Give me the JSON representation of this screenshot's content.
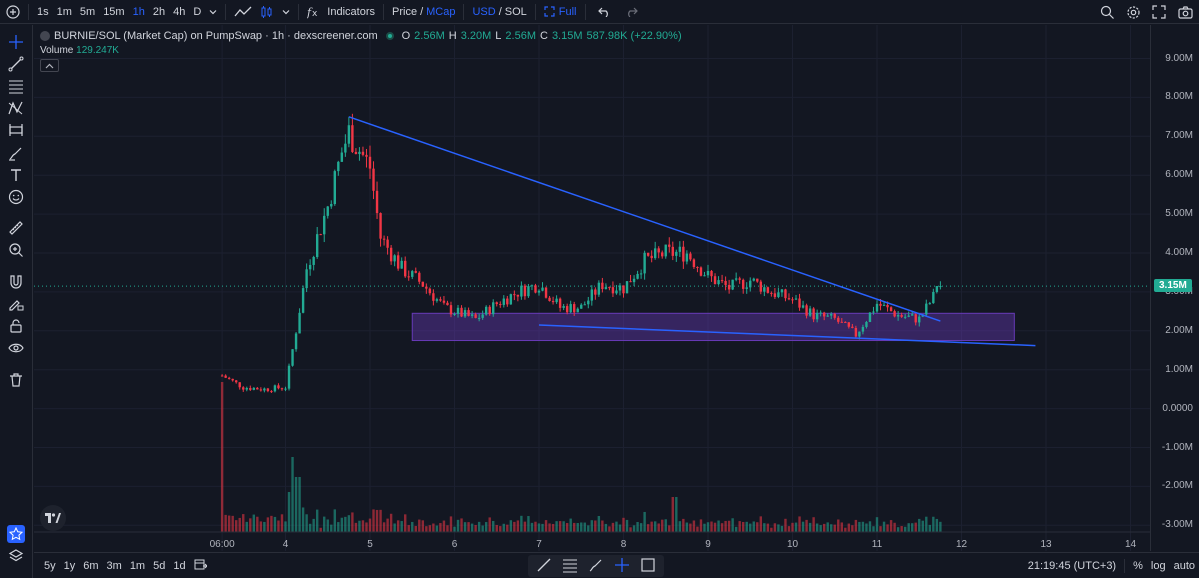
{
  "toolbar": {
    "intervals": [
      "1s",
      "1m",
      "5m",
      "15m",
      "1h",
      "2h",
      "4h",
      "D"
    ],
    "active_interval": "1h",
    "indicators_label": "Indicators",
    "price_label": "Price",
    "mcap_label": "MCap",
    "slash": "/",
    "usd_label": "USD",
    "sol_label": "SOL",
    "full_label": "Full"
  },
  "legend": {
    "symbol": "BURNIE/SOL (Market Cap) on PumpSwap · 1h · dexscreener.com",
    "open_label": "O",
    "open": "2.56M",
    "high_label": "H",
    "high": "3.20M",
    "low_label": "L",
    "low": "2.56M",
    "close_label": "C",
    "close": "3.15M",
    "change": "587.98K (+22.90%)",
    "volume_label": "Volume",
    "volume": "129.247K"
  },
  "price_axis": {
    "ticks": [
      "9.00M",
      "8.00M",
      "7.00M",
      "6.00M",
      "5.00M",
      "4.00M",
      "3.00M",
      "2.00M",
      "1.00M",
      "0.0000",
      "-1.00M",
      "-2.00M",
      "-3.00M"
    ],
    "current_price": "3.15M"
  },
  "time_axis": {
    "ticks": [
      "06:00",
      "4",
      "5",
      "6",
      "7",
      "8",
      "9",
      "10",
      "11",
      "12",
      "13",
      "14"
    ]
  },
  "bottombar": {
    "ranges": [
      "5y",
      "1y",
      "6m",
      "3m",
      "1m",
      "5d",
      "1d"
    ],
    "clock": "21:19:45 (UTC+3)",
    "percent_label": "%",
    "log_label": "log",
    "auto_label": "auto"
  },
  "colors": {
    "background": "#131722",
    "up": "#22ab94",
    "down": "#f23645",
    "trendline": "#2962ff",
    "zone": "#673ab7",
    "accent": "#2962ff"
  },
  "chart_data": {
    "type": "candlestick",
    "title": "BURNIE/SOL (Market Cap) on PumpSwap · 1h · dexscreener.com",
    "xlabel": "",
    "ylabel": "",
    "ylim": [
      -3000000,
      9000000
    ],
    "x_range": [
      "3 06:00",
      "14"
    ],
    "current_value": 3150000,
    "last_candle": {
      "open": 2560000,
      "high": 3200000,
      "low": 2560000,
      "close": 3150000,
      "change": 587980,
      "change_pct": 22.9
    },
    "last_volume": 129247,
    "price_path": [
      [
        "3 06:00",
        0.85
      ],
      [
        "3 12:00",
        0.55
      ],
      [
        "3 18:00",
        0.5
      ],
      [
        "4 00:00",
        0.55
      ],
      [
        "4 03:00",
        2.0
      ],
      [
        "4 06:00",
        3.6
      ],
      [
        "4 09:00",
        4.4
      ],
      [
        "4 12:00",
        5.2
      ],
      [
        "4 16:00",
        6.6
      ],
      [
        "4 18:00",
        7.1
      ],
      [
        "5 00:00",
        6.2
      ],
      [
        "5 03:00",
        4.4
      ],
      [
        "5 09:00",
        3.6
      ],
      [
        "5 15:00",
        3.2
      ],
      [
        "5 21:00",
        2.6
      ],
      [
        "6 06:00",
        2.3
      ],
      [
        "6 12:00",
        2.7
      ],
      [
        "6 18:00",
        3.0
      ],
      [
        "7 00:00",
        3.2
      ],
      [
        "7 06:00",
        2.6
      ],
      [
        "7 12:00",
        2.6
      ],
      [
        "7 18:00",
        3.2
      ],
      [
        "8 00:00",
        3.1
      ],
      [
        "8 06:00",
        3.8
      ],
      [
        "8 12:00",
        4.0
      ],
      [
        "8 18:00",
        4.0
      ],
      [
        "9 00:00",
        3.4
      ],
      [
        "9 06:00",
        3.1
      ],
      [
        "9 12:00",
        3.3
      ],
      [
        "9 18:00",
        3.0
      ],
      [
        "10 00:00",
        2.8
      ],
      [
        "10 06:00",
        2.4
      ],
      [
        "10 12:00",
        2.3
      ],
      [
        "10 18:00",
        1.9
      ],
      [
        "11 00:00",
        2.7
      ],
      [
        "11 06:00",
        2.4
      ],
      [
        "11 12:00",
        2.3
      ],
      [
        "11 18:00",
        3.15
      ]
    ],
    "drawings": {
      "descending_trendline": {
        "from": [
          "4 18:00",
          7.5
        ],
        "to": [
          "11 18:00",
          2.25
        ]
      },
      "support_line": {
        "from": [
          "7 00:00",
          2.15
        ],
        "to": [
          "12 21:00",
          1.62
        ]
      },
      "support_zone": {
        "from": "5 12:00",
        "to": "12 15:00",
        "top": 2.45,
        "bottom": 1.75
      }
    }
  }
}
